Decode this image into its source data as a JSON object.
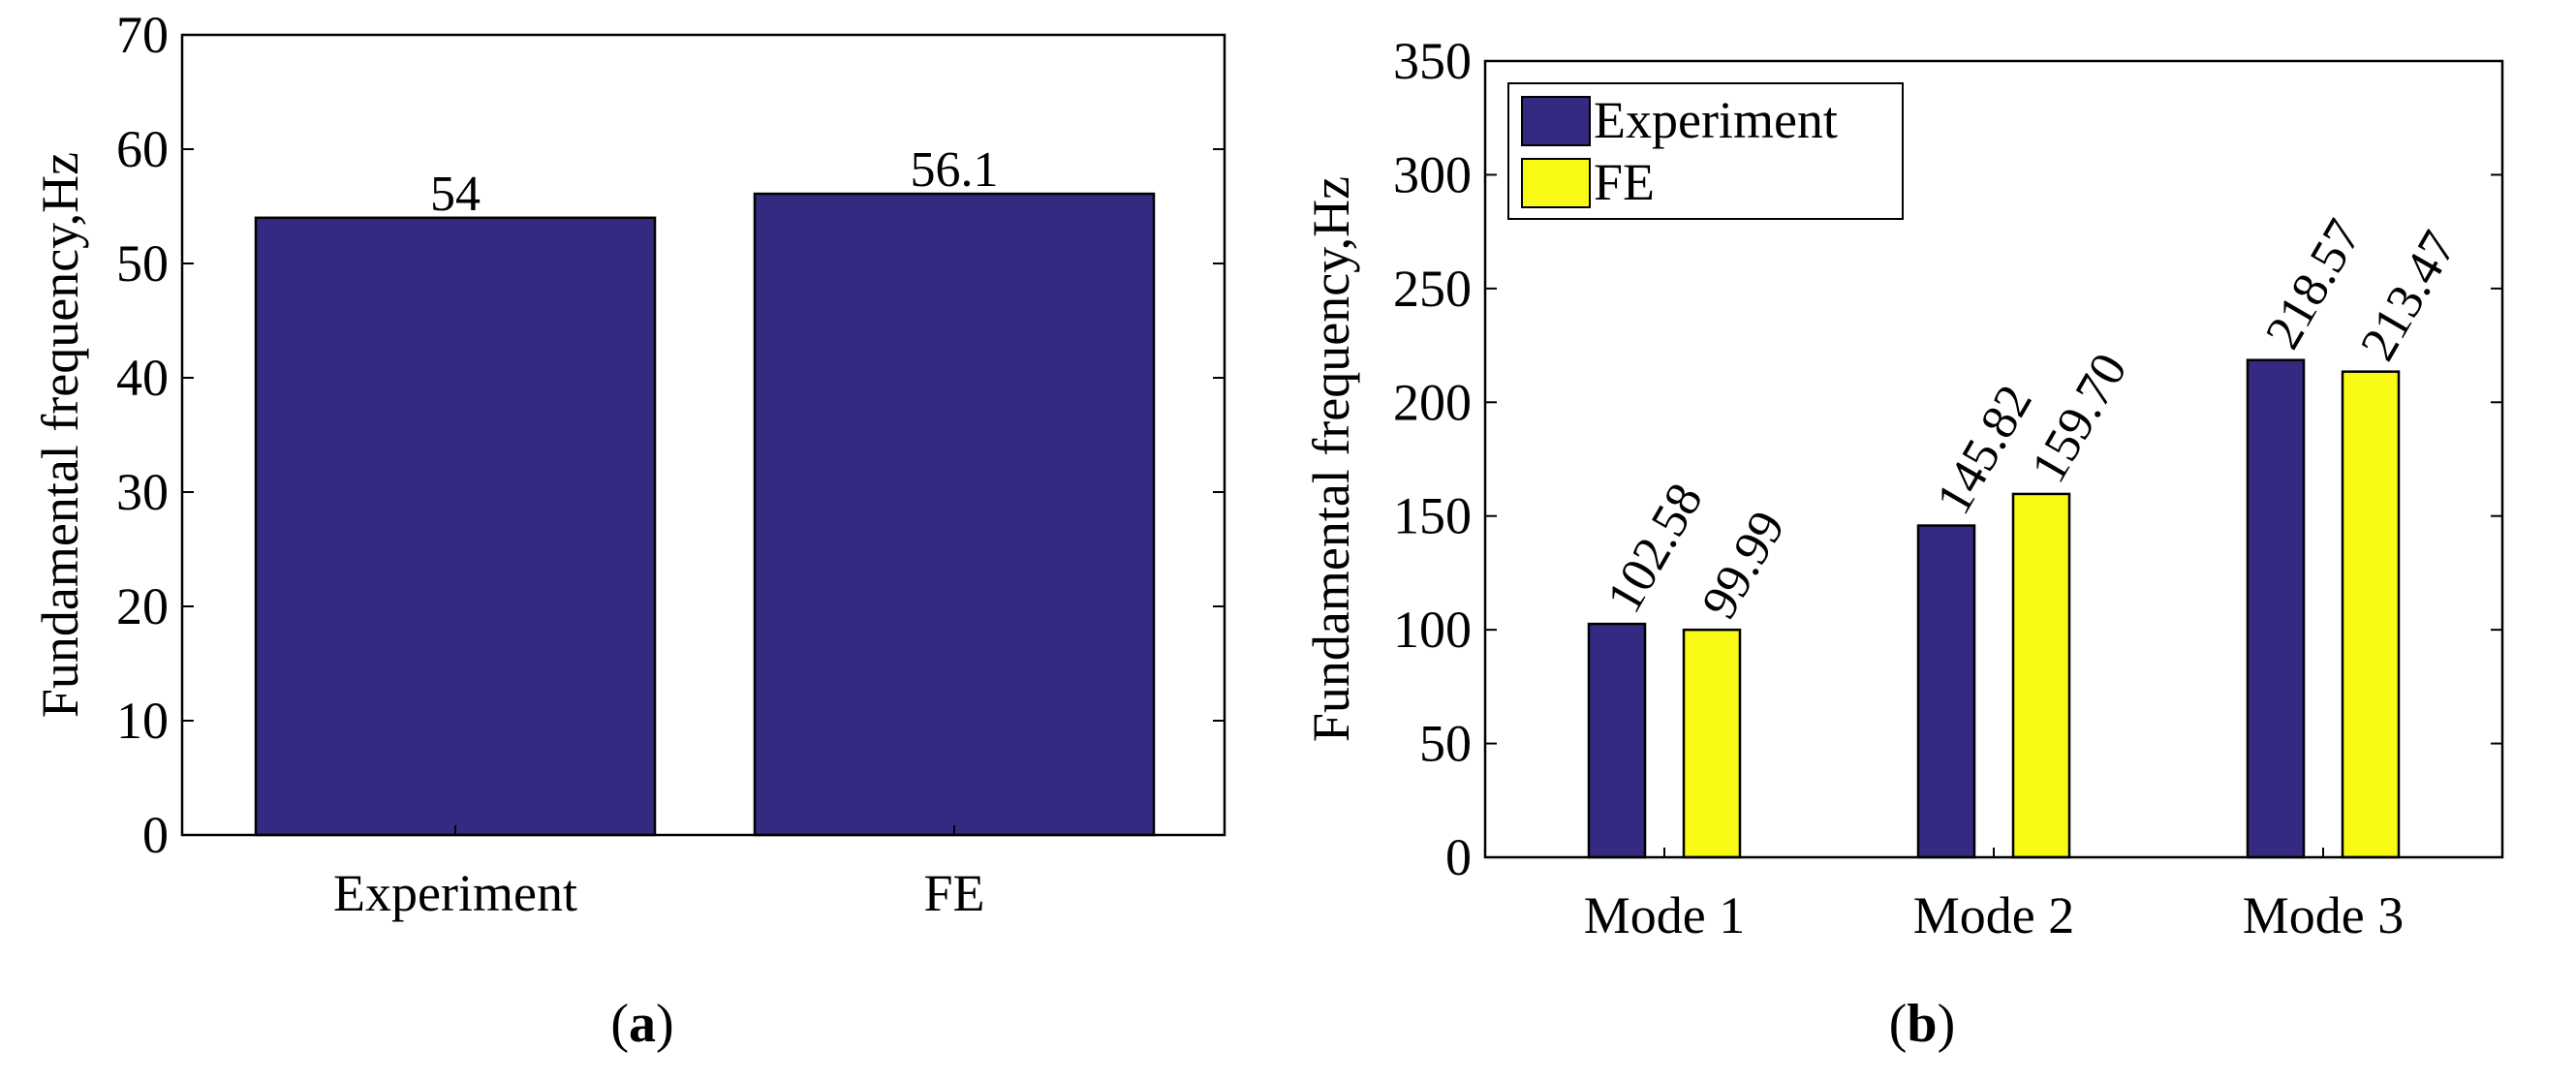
{
  "colors": {
    "experiment": "#342A82",
    "fe_a": "#342A82",
    "fe_b": "#F8F914",
    "axis": "#000000"
  },
  "chart_data": [
    {
      "type": "bar",
      "panel": "a",
      "categories": [
        "Experiment",
        "FE"
      ],
      "values": [
        54,
        56.1
      ],
      "data_labels": [
        "54",
        "56.1"
      ],
      "ylabel": "Fundamental frequency,Hz",
      "xlabel": "",
      "ylim": [
        0,
        70
      ],
      "yticks": [
        0,
        10,
        20,
        30,
        40,
        50,
        60,
        70
      ],
      "caption_open": "(",
      "caption_letter": "a",
      "caption_close": ")",
      "legend": "none",
      "grid": false
    },
    {
      "type": "bar",
      "panel": "b",
      "categories": [
        "Mode 1",
        "Mode 2",
        "Mode 3"
      ],
      "series": [
        {
          "name": "Experiment",
          "values": [
            102.58,
            145.82,
            218.57
          ],
          "data_labels": [
            "102.58",
            "145.82",
            "218.57"
          ]
        },
        {
          "name": "FE",
          "values": [
            99.99,
            159.7,
            213.47
          ],
          "data_labels": [
            "99.99",
            "159.70",
            "213.47"
          ]
        }
      ],
      "ylabel": "Fundamental frequency,Hz",
      "xlabel": "",
      "ylim": [
        0,
        350
      ],
      "yticks": [
        0,
        50,
        100,
        150,
        200,
        250,
        300,
        350
      ],
      "caption_open": "(",
      "caption_letter": "b",
      "caption_close": ")",
      "legend": "top-left",
      "grid": false
    }
  ]
}
